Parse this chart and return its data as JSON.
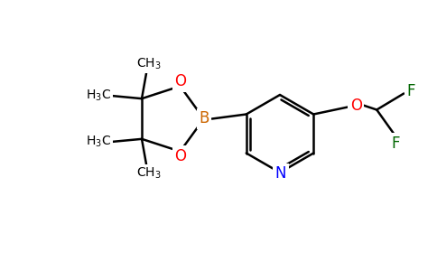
{
  "bg_color": "#ffffff",
  "bond_color": "#000000",
  "atom_colors": {
    "B": "#cc6600",
    "O": "#ff0000",
    "N": "#0000ff",
    "F": "#006600",
    "C": "#000000"
  },
  "font_size": 11
}
